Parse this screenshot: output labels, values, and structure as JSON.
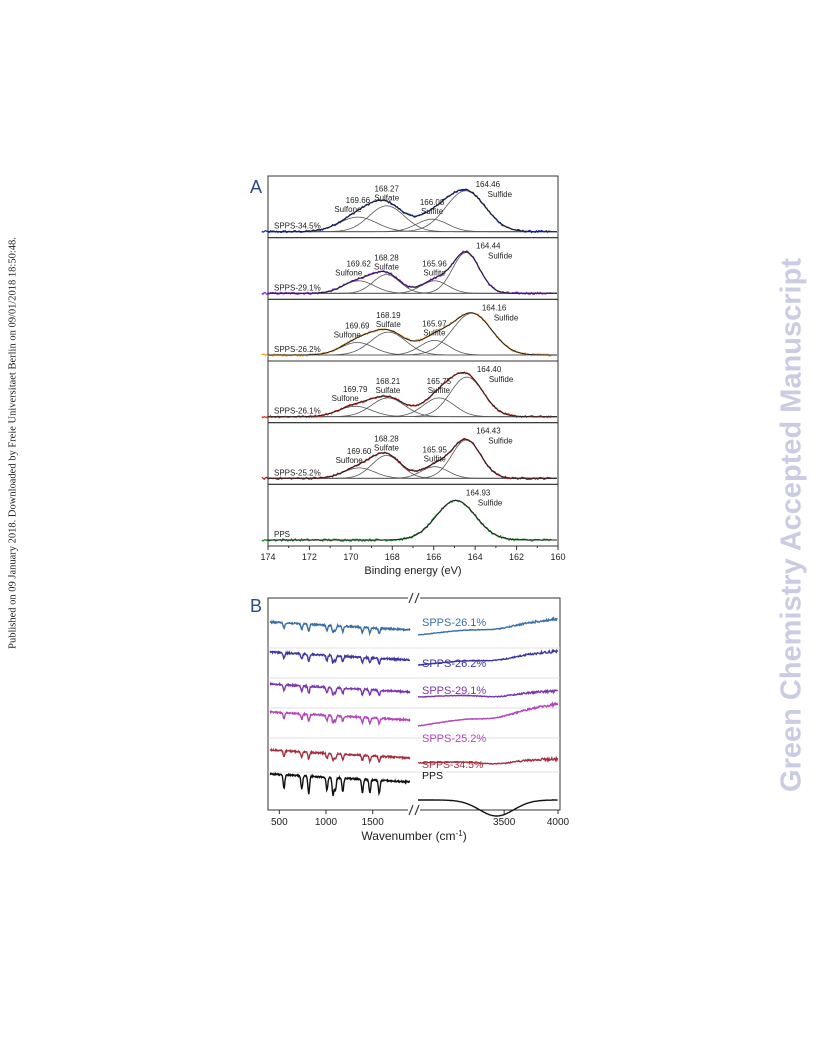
{
  "side_note": "Published on 09 January 2018. Downloaded by Freie Universitaet Berlin on 09/01/2018 18:50:48.",
  "watermark": "Green Chemistry Accepted Manuscript",
  "colors": {
    "SPPS-34.5%_xps": "#1f2fa8",
    "SPPS-29.1%_xps": "#8a2be2",
    "SPPS-26.2%_xps": "#f0a63a",
    "SPPS-26.1%_xps": "#e5322d",
    "SPPS-25.2%_xps": "#b0232a",
    "PPS_xps": "#1f8a2a",
    "SPPS-26.1%_ir": "#3a6ea5",
    "SPPS-26.2%_ir": "#3b35a0",
    "SPPS-29.1%_ir": "#7a35b0",
    "SPPS-25.2%_ir": "#b046b8",
    "SPPS-34.5%_ir": "#a33040",
    "PPS_ir": "#111111",
    "fit": "#222222"
  },
  "chart_data": [
    {
      "type": "line",
      "panel_label": "A",
      "xlabel": "Binding energy (eV)",
      "xlim": [
        174,
        160
      ],
      "xticks": [
        174,
        172,
        170,
        168,
        166,
        164,
        162,
        160
      ],
      "stacked_panels": [
        {
          "name": "SPPS-34.5%",
          "peaks": [
            {
              "energy": 169.66,
              "label": "Sulfone",
              "height": 0.35,
              "sigma": 0.9
            },
            {
              "energy": 168.27,
              "label": "Sulfate",
              "height": 0.62,
              "sigma": 0.85
            },
            {
              "energy": 166.08,
              "label": "Sulfite",
              "height": 0.3,
              "sigma": 0.75
            },
            {
              "energy": 164.46,
              "label": "Sulfide",
              "height": 0.98,
              "sigma": 0.95
            }
          ]
        },
        {
          "name": "SPPS-29.1%",
          "peaks": [
            {
              "energy": 169.62,
              "label": "Sulfone",
              "height": 0.3,
              "sigma": 0.75
            },
            {
              "energy": 168.28,
              "label": "Sulfate",
              "height": 0.45,
              "sigma": 0.65
            },
            {
              "energy": 165.96,
              "label": "Sulfite",
              "height": 0.3,
              "sigma": 0.65
            },
            {
              "energy": 164.44,
              "label": "Sulfide",
              "height": 0.98,
              "sigma": 0.65
            }
          ]
        },
        {
          "name": "SPPS-26.2%",
          "peaks": [
            {
              "energy": 169.69,
              "label": "Sulfone",
              "height": 0.3,
              "sigma": 0.8
            },
            {
              "energy": 168.19,
              "label": "Sulfate",
              "height": 0.55,
              "sigma": 0.85
            },
            {
              "energy": 165.97,
              "label": "Sulfite",
              "height": 0.35,
              "sigma": 0.7
            },
            {
              "energy": 164.16,
              "label": "Sulfide",
              "height": 1.0,
              "sigma": 0.95
            }
          ]
        },
        {
          "name": "SPPS-26.1%",
          "peaks": [
            {
              "energy": 169.79,
              "label": "Sulfone",
              "height": 0.25,
              "sigma": 0.8
            },
            {
              "energy": 168.21,
              "label": "Sulfate",
              "height": 0.45,
              "sigma": 0.8
            },
            {
              "energy": 165.75,
              "label": "Sulfite",
              "height": 0.45,
              "sigma": 0.75
            },
            {
              "energy": 164.4,
              "label": "Sulfide",
              "height": 0.95,
              "sigma": 0.8
            }
          ]
        },
        {
          "name": "SPPS-25.2%",
          "peaks": [
            {
              "energy": 169.6,
              "label": "Sulfone",
              "height": 0.25,
              "sigma": 0.75
            },
            {
              "energy": 168.28,
              "label": "Sulfate",
              "height": 0.55,
              "sigma": 0.7
            },
            {
              "energy": 165.95,
              "label": "Sulfite",
              "height": 0.28,
              "sigma": 0.65
            },
            {
              "energy": 164.43,
              "label": "Sulfide",
              "height": 0.92,
              "sigma": 0.7
            }
          ]
        },
        {
          "name": "PPS",
          "peaks": [
            {
              "energy": 164.93,
              "label": "Sulfide",
              "height": 0.95,
              "sigma": 0.95
            }
          ]
        }
      ]
    },
    {
      "type": "line",
      "panel_label": "B",
      "xlabel": "Wavenumber (cm",
      "xlabel_sup": "-1",
      "xlabel_end": ")",
      "x_segments": [
        [
          400,
          1900
        ],
        [
          2700,
          4000
        ]
      ],
      "xticks": [
        500,
        1000,
        1500,
        3500,
        4000
      ],
      "series_order": [
        "SPPS-26.1%",
        "SPPS-26.2%",
        "SPPS-29.1%",
        "SPPS-25.2%",
        "SPPS-34.5%",
        "PPS"
      ],
      "legend_labels": [
        "SPPS-26.1%",
        "SPPS-26.2%",
        "SPPS-29.1%",
        "SPPS-25.2%",
        "SPPS-34.5%",
        "PPS"
      ],
      "absorption_bands_cm-1": [
        550,
        740,
        815,
        1010,
        1075,
        1100,
        1180,
        1390,
        1470,
        1570
      ],
      "broad_band_cm-1": 3430
    }
  ]
}
